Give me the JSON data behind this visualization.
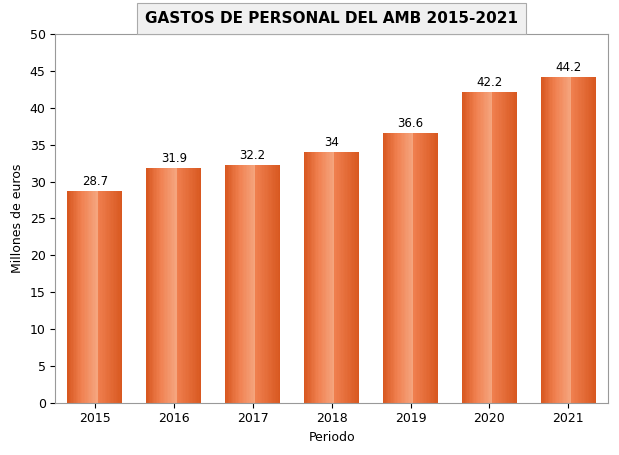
{
  "title": "GASTOS DE PERSONAL DEL AMB 2015-2021",
  "xlabel": "Periodo",
  "ylabel": "Millones de euros",
  "categories": [
    "2015",
    "2016",
    "2017",
    "2018",
    "2019",
    "2020",
    "2021"
  ],
  "values": [
    28.7,
    31.9,
    32.2,
    34.0,
    36.6,
    42.2,
    44.2
  ],
  "bar_color_main": "#D85820",
  "bar_color_center": "#F08050",
  "bar_color_edge": "#B84010",
  "ylim": [
    0,
    50
  ],
  "yticks": [
    0,
    5,
    10,
    15,
    20,
    25,
    30,
    35,
    40,
    45,
    50
  ],
  "title_fontsize": 11,
  "label_fontsize": 9,
  "tick_fontsize": 9,
  "value_fontsize": 8.5,
  "background_color": "#FFFFFF",
  "plot_bg_color": "#FFFFFF",
  "title_bg_color": "#F0F0F0",
  "bar_width": 0.7
}
